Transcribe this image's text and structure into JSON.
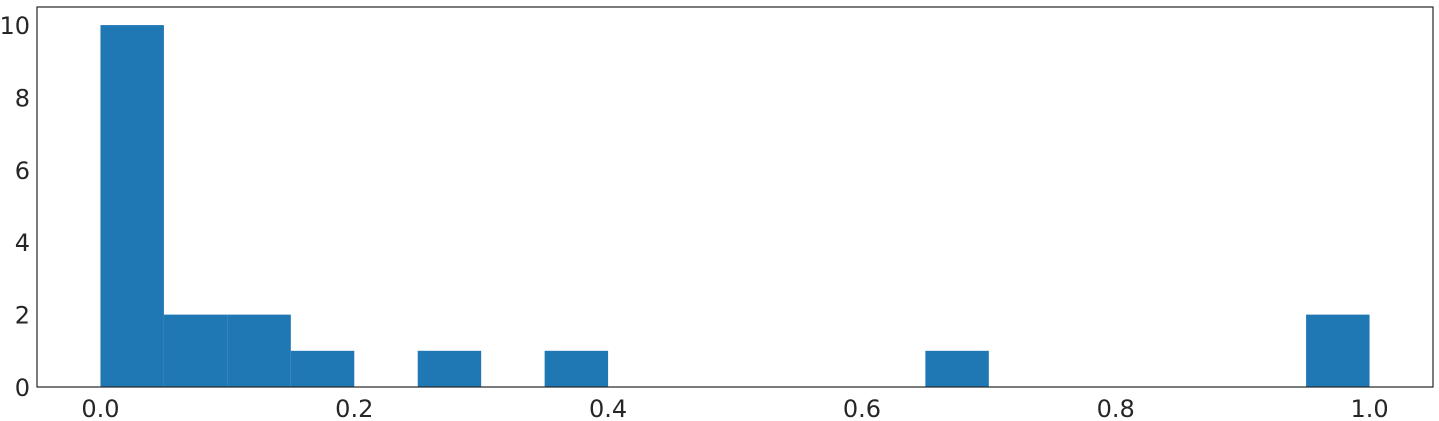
{
  "chart_data": {
    "type": "bar",
    "title": "",
    "xlabel": "",
    "ylabel": "",
    "bins": [
      [
        0.0,
        0.05
      ],
      [
        0.05,
        0.1
      ],
      [
        0.1,
        0.15
      ],
      [
        0.15,
        0.2
      ],
      [
        0.2,
        0.25
      ],
      [
        0.25,
        0.3
      ],
      [
        0.3,
        0.35
      ],
      [
        0.35,
        0.4
      ],
      [
        0.4,
        0.45
      ],
      [
        0.45,
        0.5
      ],
      [
        0.5,
        0.55
      ],
      [
        0.55,
        0.6
      ],
      [
        0.6,
        0.65
      ],
      [
        0.65,
        0.7
      ],
      [
        0.7,
        0.75
      ],
      [
        0.75,
        0.8
      ],
      [
        0.8,
        0.85
      ],
      [
        0.85,
        0.9
      ],
      [
        0.9,
        0.95
      ],
      [
        0.95,
        1.0
      ]
    ],
    "values": [
      10,
      2,
      2,
      1,
      0,
      1,
      0,
      1,
      0,
      0,
      0,
      0,
      0,
      1,
      0,
      0,
      0,
      0,
      0,
      2
    ],
    "xlim": [
      -0.05,
      1.05
    ],
    "ylim": [
      0,
      10.5
    ],
    "xticks": [
      0.0,
      0.2,
      0.4,
      0.6,
      0.8,
      1.0
    ],
    "xtick_labels": [
      "0.0",
      "0.2",
      "0.4",
      "0.6",
      "0.8",
      "1.0"
    ],
    "yticks": [
      0,
      2,
      4,
      6,
      8,
      10
    ],
    "ytick_labels": [
      "0",
      "2",
      "4",
      "6",
      "8",
      "10"
    ],
    "grid": false,
    "bar_color": "#1f77b4"
  }
}
